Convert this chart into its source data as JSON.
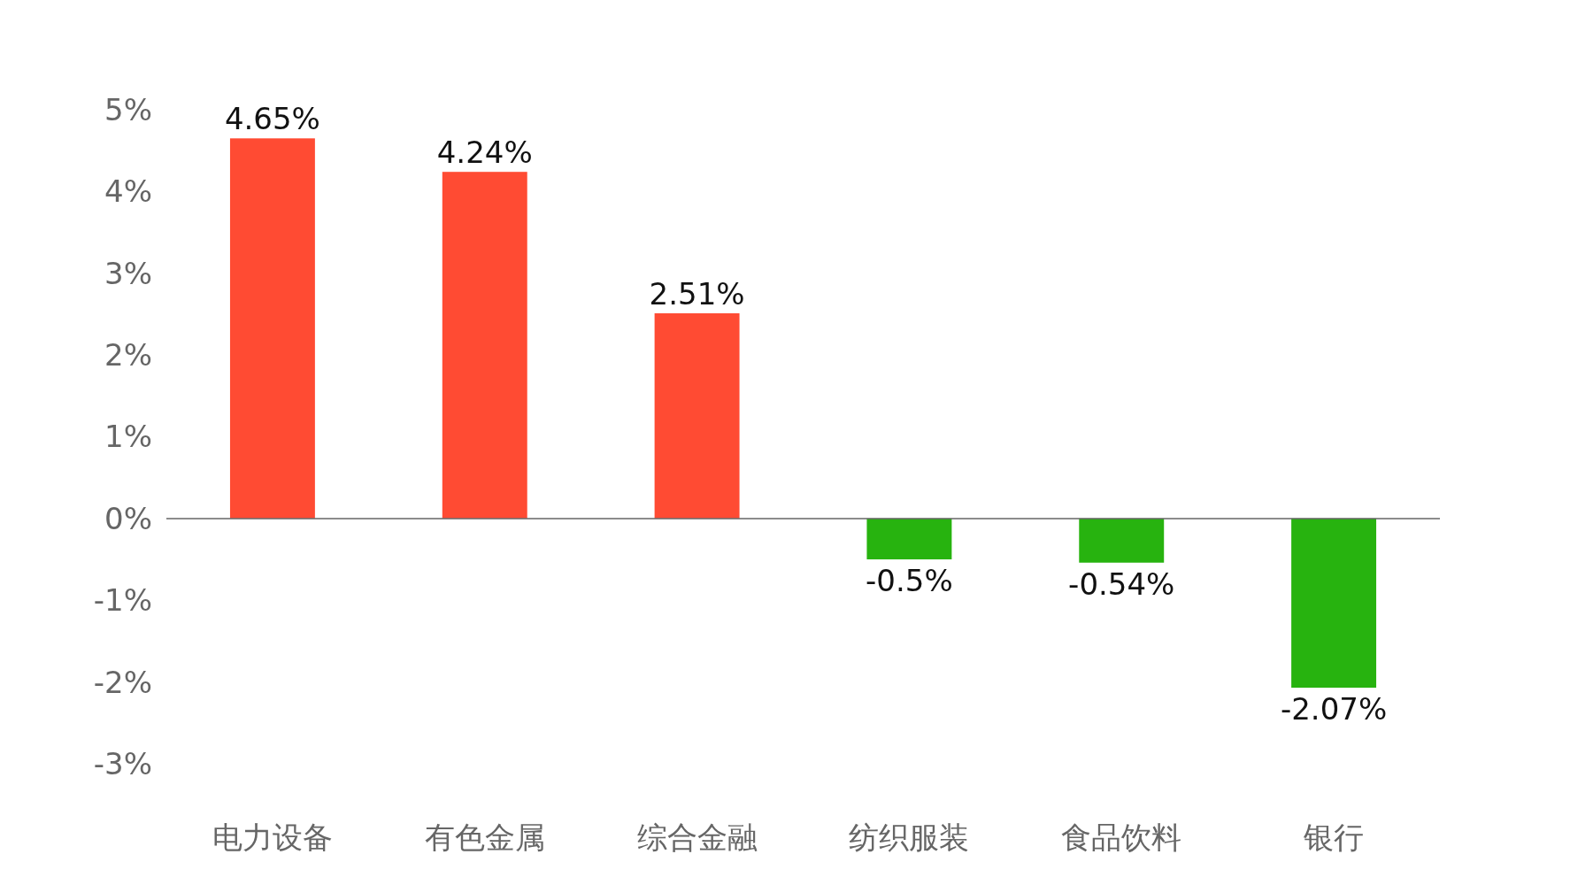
{
  "chart_data": {
    "type": "bar",
    "categories": [
      "电力设备",
      "有色金属",
      "综合金融",
      "纺织服装",
      "食品饮料",
      "银行"
    ],
    "values": [
      4.65,
      4.24,
      2.51,
      -0.5,
      -0.54,
      -2.07
    ],
    "colors": [
      "#ff4b33",
      "#ff4b33",
      "#ff4b33",
      "#27b30f",
      "#27b30f",
      "#27b30f"
    ],
    "value_labels": [
      "4.65%",
      "4.24%",
      "2.51%",
      "-0.5%",
      "-0.54%",
      "-2.07%"
    ],
    "ylim": [
      -3,
      5
    ],
    "yticks": [
      {
        "value": -3,
        "label": "-3%"
      },
      {
        "value": -2,
        "label": "-2%"
      },
      {
        "value": -1,
        "label": "-1%"
      },
      {
        "value": 0,
        "label": "0%"
      },
      {
        "value": 1,
        "label": "1%"
      },
      {
        "value": 2,
        "label": "2%"
      },
      {
        "value": 3,
        "label": "3%"
      },
      {
        "value": 4,
        "label": "4%"
      },
      {
        "value": 5,
        "label": "5%"
      }
    ],
    "tick_labels": true
  }
}
